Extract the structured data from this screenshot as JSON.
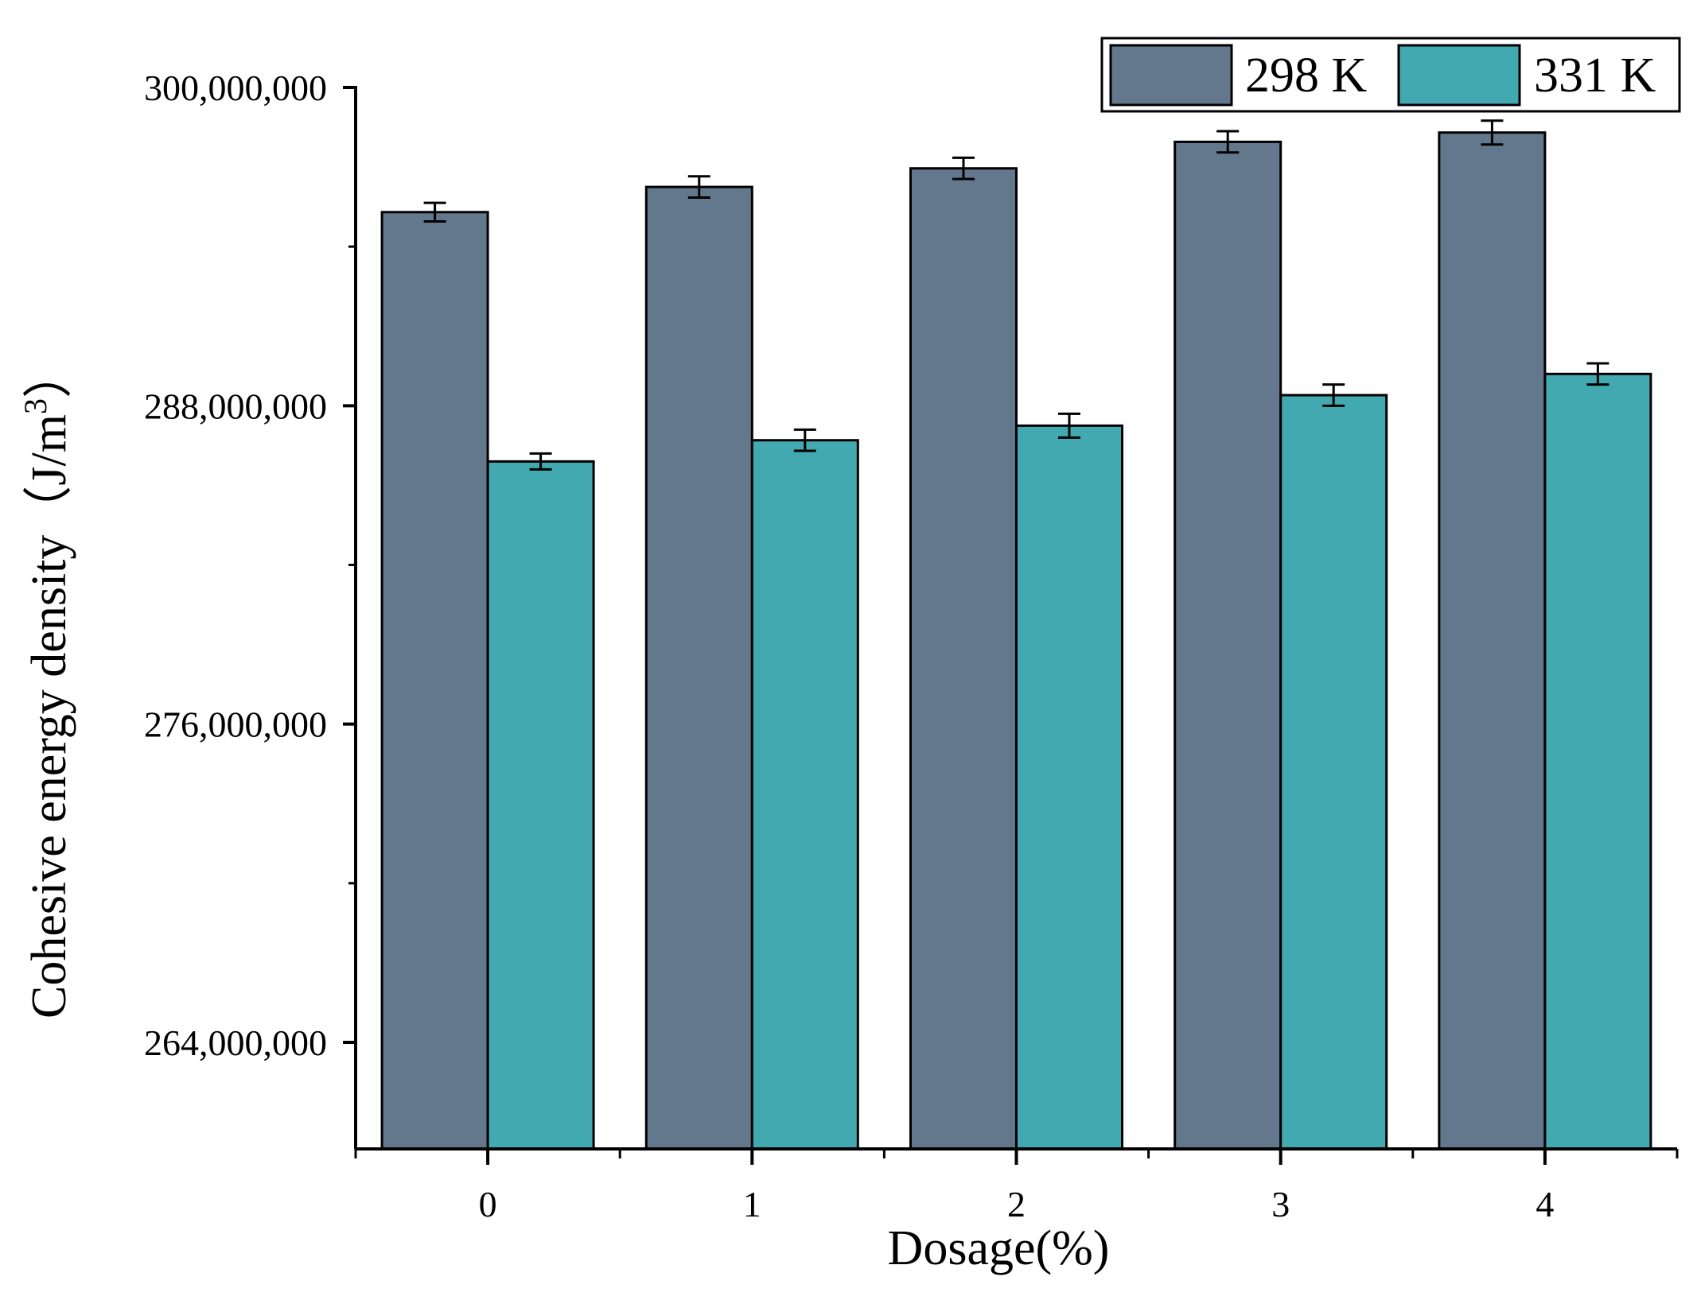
{
  "chart_data": {
    "type": "bar",
    "title": "",
    "xlabel": "Dosage(%)",
    "ylabel_main": "Cohesive energy density",
    "ylabel_unit_prefix": "（J/m",
    "ylabel_unit_sup": "3",
    "ylabel_unit_suffix": "）",
    "categories": [
      "0",
      "1",
      "2",
      "3",
      "4"
    ],
    "ylim": [
      260000000,
      300000000
    ],
    "yticks": [
      264000000,
      276000000,
      288000000,
      300000000
    ],
    "ytick_labels": [
      "264,000,000",
      "276,000,000",
      "288,000,000",
      "300,000,000"
    ],
    "grid": false,
    "legend_position": "top-right",
    "series": [
      {
        "name": "298 K",
        "color": "#63788d",
        "values": [
          295300000,
          296250000,
          296950000,
          297950000,
          298300000
        ],
        "errors": [
          350000,
          400000,
          400000,
          400000,
          450000
        ]
      },
      {
        "name": "331 K",
        "color": "#43a9b1",
        "values": [
          285900000,
          286700000,
          287250000,
          288400000,
          289200000
        ],
        "errors": [
          300000,
          400000,
          450000,
          400000,
          400000
        ]
      }
    ]
  }
}
